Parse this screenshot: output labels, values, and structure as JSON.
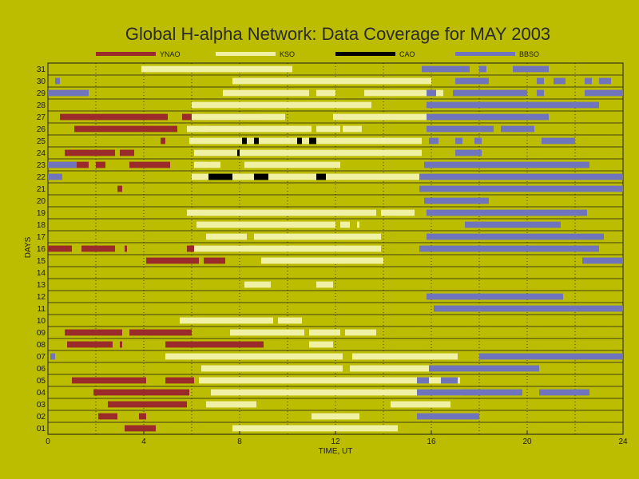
{
  "chart_data": {
    "type": "gantt",
    "title": "Global H-alpha Network: Data Coverage for MAY 2003",
    "xlabel": "TIME, UT",
    "ylabel": "DAYS",
    "xlim": [
      0,
      24
    ],
    "x_ticks": [
      "0",
      "4",
      "8",
      "12",
      "16",
      "20",
      "24"
    ],
    "days": [
      "01",
      "02",
      "03",
      "04",
      "05",
      "06",
      "07",
      "08",
      "09",
      "10",
      "11",
      "12",
      "13",
      "14",
      "15",
      "16",
      "17",
      "18",
      "19",
      "20",
      "21",
      "22",
      "23",
      "24",
      "25",
      "26",
      "27",
      "28",
      "29",
      "30",
      "31"
    ],
    "grid": true,
    "legend_position": "top",
    "series": [
      {
        "name": "YNAO",
        "color": "#9b2b2b",
        "intervals": [
          [
            1,
            3.2,
            4.5
          ],
          [
            2,
            2.1,
            2.9
          ],
          [
            2,
            3.8,
            4.1
          ],
          [
            3,
            2.5,
            5.8
          ],
          [
            4,
            1.9,
            5.9
          ],
          [
            5,
            1.0,
            4.1
          ],
          [
            5,
            4.9,
            6.1
          ],
          [
            8,
            0.8,
            2.7
          ],
          [
            8,
            3.0,
            3.1
          ],
          [
            8,
            4.9,
            9.0
          ],
          [
            9,
            0.7,
            3.1
          ],
          [
            9,
            3.4,
            6.0
          ],
          [
            15,
            4.1,
            6.3
          ],
          [
            15,
            6.5,
            7.4
          ],
          [
            16,
            0.0,
            1.0
          ],
          [
            16,
            1.4,
            2.8
          ],
          [
            16,
            3.2,
            3.3
          ],
          [
            16,
            5.8,
            8.4
          ],
          [
            21,
            2.9,
            3.1
          ],
          [
            23,
            0.0,
            1.7
          ],
          [
            23,
            2.0,
            2.4
          ],
          [
            23,
            3.4,
            5.1
          ],
          [
            23,
            6.7,
            6.8
          ],
          [
            24,
            0.7,
            2.8
          ],
          [
            24,
            3.0,
            3.6
          ],
          [
            24,
            6.1,
            8.0
          ],
          [
            25,
            4.7,
            4.9
          ],
          [
            26,
            1.1,
            5.4
          ],
          [
            26,
            6.7,
            8.3
          ],
          [
            27,
            0.5,
            5.0
          ],
          [
            27,
            5.6,
            8.9
          ]
        ]
      },
      {
        "name": "KSO",
        "color": "#f1f1a6",
        "intervals": [
          [
            1,
            7.7,
            14.6
          ],
          [
            2,
            11.0,
            13.0
          ],
          [
            3,
            6.6,
            8.7
          ],
          [
            3,
            14.3,
            16.8
          ],
          [
            4,
            6.8,
            17.3
          ],
          [
            5,
            6.3,
            17.2
          ],
          [
            6,
            6.4,
            12.3
          ],
          [
            6,
            12.6,
            15.9
          ],
          [
            7,
            4.9,
            12.3
          ],
          [
            7,
            12.7,
            17.1
          ],
          [
            8,
            10.9,
            11.9
          ],
          [
            9,
            7.6,
            10.7
          ],
          [
            9,
            10.9,
            12.2
          ],
          [
            9,
            12.4,
            13.7
          ],
          [
            10,
            5.5,
            9.4
          ],
          [
            10,
            9.6,
            10.6
          ],
          [
            13,
            8.2,
            9.3
          ],
          [
            13,
            11.2,
            11.9
          ],
          [
            15,
            8.9,
            14.0
          ],
          [
            16,
            6.1,
            13.9
          ],
          [
            17,
            6.6,
            8.3
          ],
          [
            17,
            8.6,
            13.9
          ],
          [
            18,
            6.2,
            12.0
          ],
          [
            18,
            12.2,
            12.6
          ],
          [
            18,
            12.9,
            13.0
          ],
          [
            19,
            5.8,
            13.7
          ],
          [
            19,
            13.9,
            15.3
          ],
          [
            22,
            6.0,
            15.9
          ],
          [
            23,
            6.1,
            7.2
          ],
          [
            23,
            8.2,
            12.2
          ],
          [
            24,
            6.1,
            15.6
          ],
          [
            25,
            5.9,
            15.6
          ],
          [
            26,
            5.8,
            11.0
          ],
          [
            26,
            11.2,
            12.2
          ],
          [
            26,
            12.3,
            13.1
          ],
          [
            27,
            6.0,
            9.9
          ],
          [
            27,
            11.9,
            16.0
          ],
          [
            28,
            6.0,
            13.5
          ],
          [
            29,
            7.3,
            10.9
          ],
          [
            29,
            11.2,
            12.0
          ],
          [
            29,
            13.2,
            16.5
          ],
          [
            30,
            7.7,
            16.0
          ],
          [
            31,
            3.9,
            10.2
          ]
        ]
      },
      {
        "name": "CAO",
        "color": "#000000",
        "intervals": [
          [
            22,
            6.7,
            7.7
          ],
          [
            22,
            8.6,
            9.2
          ],
          [
            22,
            11.2,
            11.6
          ],
          [
            24,
            7.9,
            8.0
          ],
          [
            25,
            8.1,
            8.3
          ],
          [
            25,
            8.6,
            8.8
          ],
          [
            25,
            10.4,
            10.6
          ],
          [
            25,
            10.9,
            11.2
          ]
        ]
      },
      {
        "name": "BBSO",
        "color": "#6f74bc",
        "intervals": [
          [
            2,
            15.4,
            18.0
          ],
          [
            4,
            15.4,
            19.8
          ],
          [
            4,
            20.5,
            22.6
          ],
          [
            5,
            15.4,
            15.9
          ],
          [
            5,
            16.4,
            17.1
          ],
          [
            6,
            15.9,
            20.5
          ],
          [
            7,
            0.1,
            0.3
          ],
          [
            7,
            18.0,
            24.0
          ],
          [
            11,
            16.1,
            24.0
          ],
          [
            12,
            15.8,
            21.5
          ],
          [
            15,
            22.3,
            24.0
          ],
          [
            16,
            15.5,
            23.0
          ],
          [
            17,
            15.8,
            23.2
          ],
          [
            18,
            17.4,
            21.4
          ],
          [
            19,
            15.8,
            22.5
          ],
          [
            20,
            15.7,
            18.4
          ],
          [
            21,
            15.5,
            24.0
          ],
          [
            22,
            0.0,
            0.6
          ],
          [
            22,
            15.5,
            24.0
          ],
          [
            23,
            0.0,
            1.2
          ],
          [
            23,
            15.7,
            22.6
          ],
          [
            24,
            17.0,
            18.1
          ],
          [
            25,
            15.9,
            16.3
          ],
          [
            25,
            17.0,
            17.3
          ],
          [
            25,
            17.8,
            18.1
          ],
          [
            25,
            20.6,
            22.0
          ],
          [
            26,
            15.8,
            18.6
          ],
          [
            26,
            18.9,
            20.3
          ],
          [
            27,
            15.8,
            20.9
          ],
          [
            28,
            15.8,
            23.0
          ],
          [
            29,
            0.0,
            1.7
          ],
          [
            29,
            15.8,
            16.2
          ],
          [
            29,
            16.9,
            20.0
          ],
          [
            29,
            20.4,
            20.7
          ],
          [
            29,
            22.4,
            24.0
          ],
          [
            30,
            0.3,
            0.5
          ],
          [
            30,
            17.0,
            18.4
          ],
          [
            30,
            20.4,
            20.7
          ],
          [
            30,
            21.1,
            21.6
          ],
          [
            30,
            22.4,
            22.7
          ],
          [
            30,
            23.0,
            23.5
          ],
          [
            31,
            15.6,
            17.6
          ],
          [
            31,
            18.0,
            18.3
          ],
          [
            31,
            19.4,
            20.9
          ]
        ]
      }
    ]
  }
}
